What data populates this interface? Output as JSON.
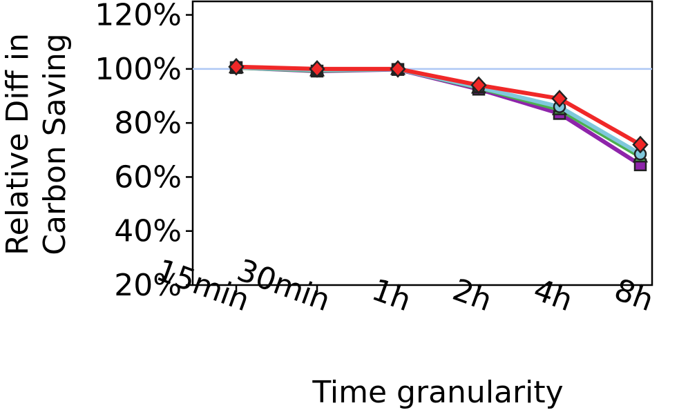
{
  "chart_data": {
    "type": "line",
    "xlabel": "Time granularity",
    "ylabel": [
      "Relative Diff in",
      "Carbon Saving"
    ],
    "categories": [
      "15min",
      "30min",
      "1h",
      "2h",
      "4h",
      "8h"
    ],
    "yticks": [
      "20%",
      "40%",
      "60%",
      "80%",
      "100%",
      "120%"
    ],
    "ylim": [
      20,
      125
    ],
    "reference_line": {
      "value": 100,
      "color": "#aec7f5"
    },
    "grid": false,
    "legend": "none",
    "series": [
      {
        "color": "#8e24aa",
        "marker": "square",
        "values": [
          100.5,
          99.2,
          99.8,
          92.5,
          83.5,
          64.5
        ]
      },
      {
        "color": "#4caf50",
        "marker": "triangle",
        "values": [
          100.5,
          99.4,
          99.9,
          93.0,
          85.0,
          67.5
        ]
      },
      {
        "color": "#80c8dc",
        "marker": "circle",
        "values": [
          100.6,
          99.6,
          99.9,
          93.2,
          86.0,
          68.5
        ]
      },
      {
        "color": "#f02828",
        "marker": "diamond",
        "values": [
          100.8,
          100.0,
          100.0,
          94.0,
          89.0,
          72.0
        ]
      }
    ]
  }
}
